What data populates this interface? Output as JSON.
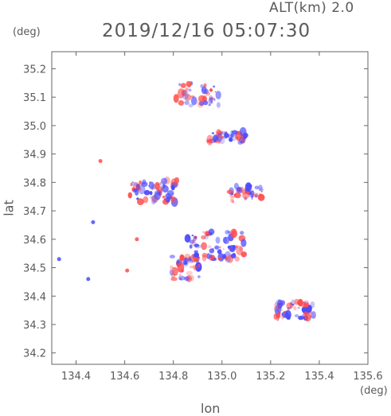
{
  "header": {
    "alt_label": "ALT(km) 2.0",
    "time_label": "2019/12/16 05:07:30"
  },
  "chart_data": {
    "type": "heatmap",
    "title": "2019/12/16 05:07:30",
    "subtitle": "ALT(km) 2.0",
    "xlabel": "lon",
    "ylabel": "lat",
    "x_unit": "(deg)",
    "y_unit": "(deg)",
    "xlim": [
      134.3,
      135.6
    ],
    "ylim": [
      34.16,
      35.26
    ],
    "x_ticks": [
      134.4,
      134.6,
      134.8,
      135.0,
      135.2,
      135.4,
      135.6
    ],
    "x_tick_labels": [
      "134.4",
      "134.6",
      "134.8",
      "135.0",
      "135.2",
      "135.4",
      "135.6"
    ],
    "y_ticks": [
      34.2,
      34.3,
      34.4,
      34.5,
      34.6,
      34.7,
      34.8,
      34.9,
      35.0,
      35.1,
      35.2
    ],
    "y_tick_labels": [
      "34.2",
      "34.3",
      "34.4",
      "34.5",
      "34.6",
      "34.7",
      "34.8",
      "34.9",
      "35.0",
      "35.1",
      "35.2"
    ],
    "grid": false,
    "colors": {
      "positive": "#ff4b4b",
      "negative": "#4a4aff",
      "axis": "#666666"
    },
    "clusters": [
      {
        "lon": 134.9,
        "lat": 35.11,
        "spread_lon": 0.09,
        "spread_lat": 0.04,
        "count": 40
      },
      {
        "lon": 135.02,
        "lat": 34.96,
        "spread_lon": 0.08,
        "spread_lat": 0.02,
        "count": 45
      },
      {
        "lon": 134.72,
        "lat": 34.77,
        "spread_lon": 0.1,
        "spread_lat": 0.04,
        "count": 70
      },
      {
        "lon": 135.1,
        "lat": 34.76,
        "spread_lon": 0.07,
        "spread_lat": 0.03,
        "count": 40
      },
      {
        "lon": 134.97,
        "lat": 34.58,
        "spread_lon": 0.12,
        "spread_lat": 0.05,
        "count": 80
      },
      {
        "lon": 134.85,
        "lat": 34.5,
        "spread_lon": 0.06,
        "spread_lat": 0.04,
        "count": 40
      },
      {
        "lon": 135.3,
        "lat": 34.35,
        "spread_lon": 0.08,
        "spread_lat": 0.03,
        "count": 65
      }
    ],
    "points": [
      {
        "lon": 134.5,
        "lat": 34.875,
        "v": 1
      },
      {
        "lon": 134.33,
        "lat": 34.53,
        "v": -1
      },
      {
        "lon": 134.45,
        "lat": 34.46,
        "v": -1
      },
      {
        "lon": 134.61,
        "lat": 34.49,
        "v": 1
      },
      {
        "lon": 134.65,
        "lat": 34.6,
        "v": 1
      },
      {
        "lon": 134.47,
        "lat": 34.66,
        "v": -1
      }
    ]
  }
}
